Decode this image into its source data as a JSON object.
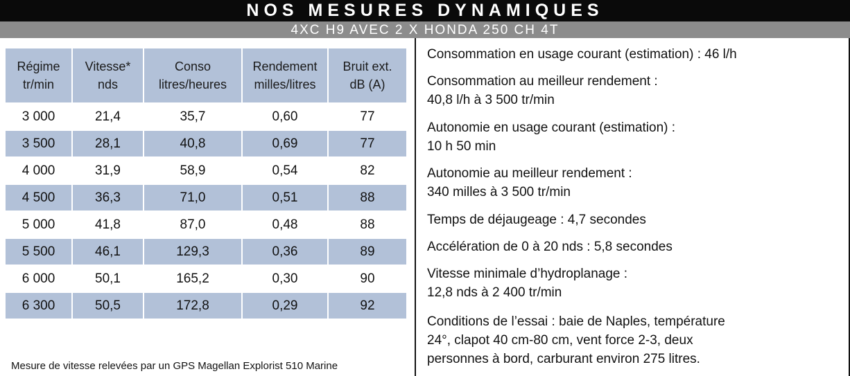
{
  "header": {
    "title": "NOS MESURES DYNAMIQUES",
    "subtitle": "4XC H9 AVEC 2 X HONDA 250 CH 4T"
  },
  "table": {
    "headers": [
      {
        "line1": "Régime",
        "line2": "tr/min"
      },
      {
        "line1": "Vitesse*",
        "line2": "nds"
      },
      {
        "line1": "Conso",
        "line2": "litres/heures"
      },
      {
        "line1": "Rendement",
        "line2": "milles/litres"
      },
      {
        "line1": "Bruit ext.",
        "line2": "dB (A)"
      }
    ],
    "rows": [
      [
        "3 000",
        "21,4",
        "35,7",
        "0,60",
        "77"
      ],
      [
        "3 500",
        "28,1",
        "40,8",
        "0,69",
        "77"
      ],
      [
        "4 000",
        "31,9",
        "58,9",
        "0,54",
        "82"
      ],
      [
        "4 500",
        "36,3",
        "71,0",
        "0,51",
        "88"
      ],
      [
        "5 000",
        "41,8",
        "87,0",
        "0,48",
        "88"
      ],
      [
        "5 500",
        "46,1",
        "129,3",
        "0,36",
        "89"
      ],
      [
        "6 000",
        "50,1",
        "165,2",
        "0,30",
        "90"
      ],
      [
        "6 300",
        "50,5",
        "172,8",
        "0,29",
        "92"
      ]
    ]
  },
  "footnote": "Mesure de vitesse relevées par un GPS Magellan Explorist 510 Marine",
  "info": [
    "Consommation en usage courant (estimation) : 46 l/h",
    "Consommation au meilleur rendement :\n40,8 l/h à 3 500 tr/min",
    "Autonomie en usage courant (estimation)  :\n10 h 50 min",
    "Autonomie au meilleur rendement :\n340 milles à 3 500 tr/min",
    "Temps de déjaugeage : 4,7 secondes",
    "Accélération de 0 à 20 nds : 5,8 secondes",
    "Vitesse minimale d’hydroplanage :\n12,8 nds à 2 400 tr/min",
    "Conditions de l’essai : baie de Naples, température\n24°, clapot 40 cm-80 cm, vent force 2-3, deux\npersonnes à bord, carburant environ 275 litres."
  ],
  "colors": {
    "title_bg": "#0a0a0a",
    "subtitle_bg": "#8c8c8c",
    "table_shade": "#b2c1d8"
  }
}
